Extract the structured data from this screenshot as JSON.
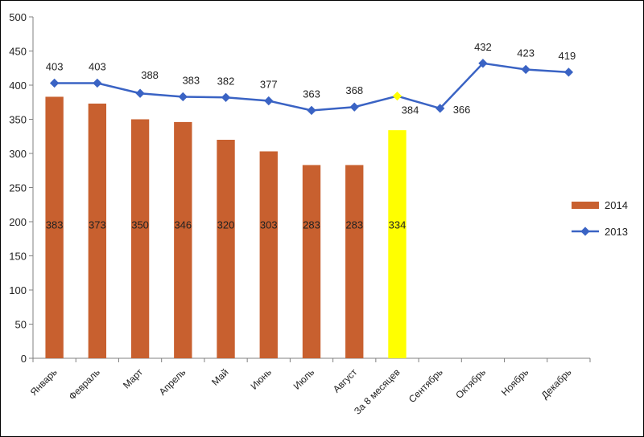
{
  "chart_data": {
    "type": "bar",
    "categories": [
      "Январь",
      "Февраль",
      "Март",
      "Апрель",
      "Май",
      "Июнь",
      "Июль",
      "Август",
      "За 8 месяцев",
      "Сентябрь",
      "Октябрь",
      "Ноябрь",
      "Декабрь"
    ],
    "yticks": [
      "0",
      "50",
      "100",
      "150",
      "200",
      "250",
      "300",
      "350",
      "400",
      "450",
      "500"
    ],
    "ylim": [
      0,
      500
    ],
    "grid": false,
    "legend_position": "right",
    "series": [
      {
        "name": "2014",
        "type": "bar",
        "color": "#C8602F",
        "highlight_color": "#FFFF00",
        "highlight_index": 8,
        "values": [
          383,
          373,
          350,
          346,
          320,
          303,
          283,
          283,
          334,
          null,
          null,
          null,
          null
        ],
        "labels": [
          "383",
          "373",
          "350",
          "346",
          "320",
          "303",
          "283",
          "283",
          "334",
          "",
          "",
          "",
          ""
        ]
      },
      {
        "name": "2013",
        "type": "line",
        "color": "#3A63C4",
        "highlight_color": "#FFFF00",
        "highlight_index": 8,
        "values": [
          403,
          403,
          388,
          383,
          382,
          377,
          363,
          368,
          384,
          366,
          432,
          423,
          419
        ],
        "labels": [
          "403",
          "403",
          "388",
          "383",
          "382",
          "377",
          "363",
          "368",
          "384",
          "366",
          "432",
          "423",
          "419"
        ]
      }
    ]
  }
}
